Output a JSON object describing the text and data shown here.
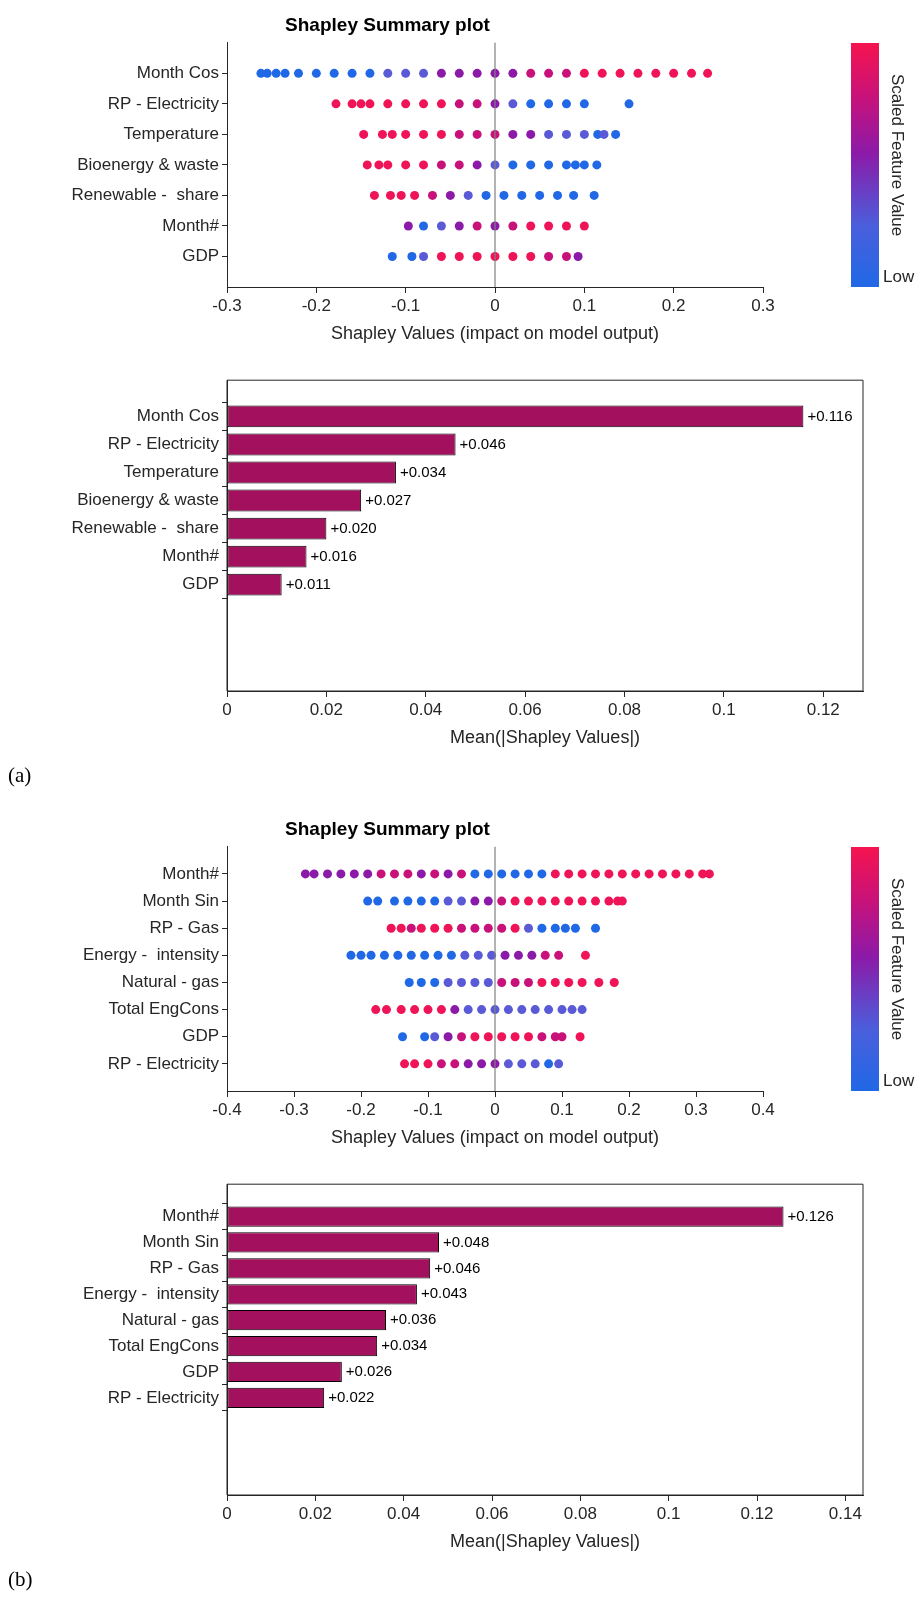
{
  "chart_data": [
    {
      "type": "scatter",
      "title": "Shapley Summary plot",
      "orientation": "horizontal",
      "xlabel": "Shapley Values (impact on model output)",
      "xlim": [
        -0.3,
        0.3
      ],
      "xticks": [
        -0.3,
        -0.2,
        -0.1,
        0,
        0.1,
        0.2,
        0.3
      ],
      "grid": false,
      "legend": false,
      "clabel": "Scaled Feature Value",
      "annotations": [
        "Low"
      ],
      "ref_lines": [
        {
          "axis": "x",
          "value": 0,
          "color": "#808080"
        }
      ],
      "categories": [
        "Month Cos",
        "RP - Electricity",
        "Temperature",
        "Bioenergy & waste",
        "Renewable -  share",
        "Month#",
        "GDP"
      ],
      "series": [
        {
          "x": [
            "Month Cos",
            "Month Cos",
            "Month Cos",
            "Month Cos",
            "Month Cos",
            "Month Cos",
            "Month Cos",
            "Month Cos",
            "Month Cos",
            "Month Cos",
            "Month Cos",
            "Month Cos",
            "Month Cos",
            "Month Cos",
            "Month Cos",
            "Month Cos",
            "Month Cos",
            "Month Cos",
            "Month Cos",
            "Month Cos",
            "Month Cos",
            "Month Cos",
            "Month Cos",
            "Month Cos",
            "Month Cos",
            "Month Cos",
            "Month Cos",
            "Month Cos"
          ],
          "values": [
            -0.262,
            -0.255,
            -0.245,
            -0.235,
            -0.22,
            -0.2,
            -0.18,
            -0.16,
            -0.14,
            -0.12,
            -0.1,
            -0.08,
            -0.06,
            -0.04,
            -0.02,
            0,
            0.02,
            0.04,
            0.06,
            0.08,
            0.1,
            0.12,
            0.14,
            0.16,
            0.18,
            0.2,
            0.22,
            0.238
          ],
          "colors": [
            "#2068e6",
            "#2068e6",
            "#2068e6",
            "#2068e6",
            "#2068e6",
            "#2068e6",
            "#2068e6",
            "#2068e6",
            "#2068e6",
            "#5a5ad6",
            "#5a5ad6",
            "#5a5ad6",
            "#8c1aa8",
            "#8c1aa8",
            "#8c1aa8",
            "#8c1aa8",
            "#8c1aa8",
            "#c8127a",
            "#c8127a",
            "#c8127a",
            "#ef1458",
            "#ef1458",
            "#ef1458",
            "#ef1458",
            "#ef1458",
            "#ef1458",
            "#ef1458",
            "#ef1458"
          ]
        },
        {
          "x": [
            "RP - Electricity",
            "RP - Electricity",
            "RP - Electricity",
            "RP - Electricity",
            "RP - Electricity",
            "RP - Electricity",
            "RP - Electricity",
            "RP - Electricity",
            "RP - Electricity",
            "RP - Electricity",
            "RP - Electricity",
            "RP - Electricity",
            "RP - Electricity",
            "RP - Electricity",
            "RP - Electricity",
            "RP - Electricity",
            "RP - Electricity"
          ],
          "values": [
            -0.178,
            -0.16,
            -0.15,
            -0.14,
            -0.12,
            -0.1,
            -0.08,
            -0.06,
            -0.04,
            -0.02,
            0,
            0.02,
            0.04,
            0.06,
            0.08,
            0.1,
            0.15
          ],
          "colors": [
            "#ef1458",
            "#ef1458",
            "#ef1458",
            "#ef1458",
            "#ef1458",
            "#ef1458",
            "#ef1458",
            "#ef1458",
            "#c8127a",
            "#c8127a",
            "#8c1aa8",
            "#5a5ad6",
            "#2068e6",
            "#2068e6",
            "#2068e6",
            "#2068e6",
            "#2068e6"
          ]
        },
        {
          "x": [
            "Temperature",
            "Temperature",
            "Temperature",
            "Temperature",
            "Temperature",
            "Temperature",
            "Temperature",
            "Temperature",
            "Temperature",
            "Temperature",
            "Temperature",
            "Temperature",
            "Temperature",
            "Temperature",
            "Temperature",
            "Temperature",
            "Temperature"
          ],
          "values": [
            -0.147,
            -0.126,
            -0.115,
            -0.1,
            -0.08,
            -0.06,
            -0.04,
            -0.02,
            0,
            0.02,
            0.04,
            0.06,
            0.08,
            0.1,
            0.115,
            0.122,
            0.135
          ],
          "colors": [
            "#ef1458",
            "#ef1458",
            "#ef1458",
            "#ef1458",
            "#ef1458",
            "#ef1458",
            "#c8127a",
            "#c8127a",
            "#c8127a",
            "#8c1aa8",
            "#8c1aa8",
            "#5a5ad6",
            "#5a5ad6",
            "#5a5ad6",
            "#2068e6",
            "#5a5ad6",
            "#2068e6"
          ]
        },
        {
          "x": [
            "Bioenergy & waste",
            "Bioenergy & waste",
            "Bioenergy & waste",
            "Bioenergy & waste",
            "Bioenergy & waste",
            "Bioenergy & waste",
            "Bioenergy & waste",
            "Bioenergy & waste",
            "Bioenergy & waste",
            "Bioenergy & waste",
            "Bioenergy & waste",
            "Bioenergy & waste",
            "Bioenergy & waste",
            "Bioenergy & waste",
            "Bioenergy & waste",
            "Bioenergy & waste"
          ],
          "values": [
            -0.143,
            -0.13,
            -0.12,
            -0.1,
            -0.08,
            -0.06,
            -0.04,
            -0.02,
            0,
            0.02,
            0.04,
            0.06,
            0.08,
            0.09,
            0.1,
            0.114
          ],
          "colors": [
            "#ef1458",
            "#ef1458",
            "#ef1458",
            "#ef1458",
            "#ef1458",
            "#c8127a",
            "#c8127a",
            "#8c1aa8",
            "#5a5ad6",
            "#2068e6",
            "#2068e6",
            "#2068e6",
            "#2068e6",
            "#2068e6",
            "#2068e6",
            "#2068e6"
          ]
        },
        {
          "x": [
            "Renewable -  share",
            "Renewable -  share",
            "Renewable -  share",
            "Renewable -  share",
            "Renewable -  share",
            "Renewable -  share",
            "Renewable -  share",
            "Renewable -  share",
            "Renewable -  share",
            "Renewable -  share",
            "Renewable -  share",
            "Renewable -  share",
            "Renewable -  share",
            "Renewable -  share"
          ],
          "values": [
            -0.135,
            -0.117,
            -0.105,
            -0.09,
            -0.07,
            -0.05,
            -0.03,
            -0.01,
            0.01,
            0.03,
            0.05,
            0.07,
            0.088,
            0.111
          ],
          "colors": [
            "#ef1458",
            "#ef1458",
            "#ef1458",
            "#ef1458",
            "#c8127a",
            "#8c1aa8",
            "#5a5ad6",
            "#2068e6",
            "#2068e6",
            "#2068e6",
            "#2068e6",
            "#2068e6",
            "#2068e6",
            "#2068e6"
          ]
        },
        {
          "x": [
            "Month#",
            "Month#",
            "Month#",
            "Month#",
            "Month#",
            "Month#",
            "Month#",
            "Month#",
            "Month#",
            "Month#",
            "Month#"
          ],
          "values": [
            -0.097,
            -0.08,
            -0.06,
            -0.04,
            -0.02,
            0,
            0.02,
            0.04,
            0.06,
            0.08,
            0.1
          ],
          "colors": [
            "#8c1aa8",
            "#2068e6",
            "#5a5ad6",
            "#8c1aa8",
            "#c8127a",
            "#8c1aa8",
            "#c8127a",
            "#ef1458",
            "#ef1458",
            "#ef1458",
            "#ef1458"
          ]
        },
        {
          "x": [
            "GDP",
            "GDP",
            "GDP",
            "GDP",
            "GDP",
            "GDP",
            "GDP",
            "GDP",
            "GDP",
            "GDP",
            "GDP",
            "GDP"
          ],
          "values": [
            -0.115,
            -0.093,
            -0.08,
            -0.06,
            -0.04,
            -0.02,
            0,
            0.02,
            0.04,
            0.06,
            0.08,
            0.093
          ],
          "colors": [
            "#2068e6",
            "#2068e6",
            "#5a5ad6",
            "#ef1458",
            "#ef1458",
            "#ef1458",
            "#ef1458",
            "#ef1458",
            "#ef1458",
            "#c8127a",
            "#c8127a",
            "#8c1aa8"
          ]
        }
      ]
    },
    {
      "type": "bar",
      "orientation": "horizontal",
      "xlabel": "Mean(|Shapley Values|)",
      "categories": [
        "Month Cos",
        "RP - Electricity",
        "Temperature",
        "Bioenergy & waste",
        "Renewable -  share",
        "Month#",
        "GDP"
      ],
      "values": [
        0.116,
        0.046,
        0.034,
        0.027,
        0.02,
        0.016,
        0.011
      ],
      "value_labels": [
        "+0.116",
        "+0.046",
        "+0.034",
        "+0.027",
        "+0.020",
        "+0.016",
        "+0.011"
      ],
      "color": "#a3105e",
      "xlim": [
        0,
        0.128
      ],
      "xticks": [
        0,
        0.02,
        0.04,
        0.06,
        0.08,
        0.1,
        0.12
      ],
      "grid": false,
      "legend": false,
      "annotations": [
        "(a)"
      ]
    },
    {
      "type": "scatter",
      "title": "Shapley Summary plot",
      "orientation": "horizontal",
      "xlabel": "Shapley Values (impact on model output)",
      "xlim": [
        -0.4,
        0.4
      ],
      "xticks": [
        -0.4,
        -0.3,
        -0.2,
        -0.1,
        0,
        0.1,
        0.2,
        0.3,
        0.4
      ],
      "grid": false,
      "legend": false,
      "clabel": "Scaled Feature Value",
      "annotations": [
        "Low"
      ],
      "ref_lines": [
        {
          "axis": "x",
          "value": 0,
          "color": "#808080"
        }
      ],
      "categories": [
        "Month#",
        "Month Sin",
        "RP - Gas",
        "Energy -  intensity",
        "Natural - gas",
        "Total EngCons",
        "GDP",
        "RP - Electricity"
      ],
      "series": [
        {
          "x": [
            "Month#",
            "Month#",
            "Month#",
            "Month#",
            "Month#",
            "Month#",
            "Month#",
            "Month#",
            "Month#",
            "Month#",
            "Month#",
            "Month#",
            "Month#",
            "Month#",
            "Month#",
            "Month#",
            "Month#",
            "Month#",
            "Month#",
            "Month#",
            "Month#",
            "Month#",
            "Month#",
            "Month#",
            "Month#",
            "Month#",
            "Month#",
            "Month#",
            "Month#",
            "Month#",
            "Month#",
            "Month#"
          ],
          "values": [
            -0.283,
            -0.27,
            -0.25,
            -0.23,
            -0.21,
            -0.19,
            -0.17,
            -0.15,
            -0.13,
            -0.11,
            -0.09,
            -0.07,
            -0.05,
            -0.03,
            -0.01,
            0.01,
            0.03,
            0.05,
            0.07,
            0.09,
            0.11,
            0.13,
            0.15,
            0.17,
            0.19,
            0.21,
            0.23,
            0.25,
            0.27,
            0.29,
            0.31,
            0.32
          ],
          "colors": [
            "#8c1aa8",
            "#8c1aa8",
            "#8c1aa8",
            "#8c1aa8",
            "#8c1aa8",
            "#8c1aa8",
            "#c8127a",
            "#c8127a",
            "#c8127a",
            "#8c1aa8",
            "#c8127a",
            "#8c1aa8",
            "#c8127a",
            "#2068e6",
            "#2068e6",
            "#2068e6",
            "#2068e6",
            "#2068e6",
            "#2068e6",
            "#ef1458",
            "#ef1458",
            "#ef1458",
            "#ef1458",
            "#ef1458",
            "#ef1458",
            "#ef1458",
            "#ef1458",
            "#ef1458",
            "#ef1458",
            "#ef1458",
            "#ef1458",
            "#ef1458"
          ]
        },
        {
          "x": [
            "Month Sin",
            "Month Sin",
            "Month Sin",
            "Month Sin",
            "Month Sin",
            "Month Sin",
            "Month Sin",
            "Month Sin",
            "Month Sin",
            "Month Sin",
            "Month Sin",
            "Month Sin",
            "Month Sin",
            "Month Sin",
            "Month Sin",
            "Month Sin",
            "Month Sin",
            "Month Sin",
            "Month Sin",
            "Month Sin",
            "Month Sin"
          ],
          "values": [
            -0.19,
            -0.175,
            -0.15,
            -0.13,
            -0.11,
            -0.09,
            -0.07,
            -0.05,
            -0.03,
            -0.01,
            0.01,
            0.03,
            0.05,
            0.07,
            0.09,
            0.11,
            0.13,
            0.15,
            0.17,
            0.183,
            0.19
          ],
          "colors": [
            "#2068e6",
            "#2068e6",
            "#2068e6",
            "#2068e6",
            "#2068e6",
            "#2068e6",
            "#5a5ad6",
            "#5a5ad6",
            "#8c1aa8",
            "#8c1aa8",
            "#c8127a",
            "#ef1458",
            "#ef1458",
            "#ef1458",
            "#ef1458",
            "#ef1458",
            "#ef1458",
            "#ef1458",
            "#ef1458",
            "#ef1458",
            "#ef1458"
          ]
        },
        {
          "x": [
            "RP - Gas",
            "RP - Gas",
            "RP - Gas",
            "RP - Gas",
            "RP - Gas",
            "RP - Gas",
            "RP - Gas",
            "RP - Gas",
            "RP - Gas",
            "RP - Gas",
            "RP - Gas",
            "RP - Gas",
            "RP - Gas",
            "RP - Gas",
            "RP - Gas",
            "RP - Gas",
            "RP - Gas"
          ],
          "values": [
            -0.155,
            -0.14,
            -0.125,
            -0.11,
            -0.09,
            -0.07,
            -0.05,
            -0.03,
            -0.01,
            0.01,
            0.03,
            0.05,
            0.07,
            0.09,
            0.105,
            0.12,
            0.15
          ],
          "colors": [
            "#ef1458",
            "#ef1458",
            "#c8127a",
            "#ef1458",
            "#ef1458",
            "#ef1458",
            "#c8127a",
            "#c8127a",
            "#c8127a",
            "#c8127a",
            "#ef1458",
            "#5a5ad6",
            "#2068e6",
            "#2068e6",
            "#2068e6",
            "#2068e6",
            "#2068e6"
          ]
        },
        {
          "x": [
            "Energy -  intensity",
            "Energy -  intensity",
            "Energy -  intensity",
            "Energy -  intensity",
            "Energy -  intensity",
            "Energy -  intensity",
            "Energy -  intensity",
            "Energy -  intensity",
            "Energy -  intensity",
            "Energy -  intensity",
            "Energy -  intensity",
            "Energy -  intensity",
            "Energy -  intensity",
            "Energy -  intensity",
            "Energy -  intensity",
            "Energy -  intensity",
            "Energy -  intensity",
            "Energy -  intensity"
          ],
          "values": [
            -0.215,
            -0.2,
            -0.185,
            -0.165,
            -0.145,
            -0.125,
            -0.105,
            -0.085,
            -0.065,
            -0.045,
            -0.025,
            -0.005,
            0.015,
            0.035,
            0.055,
            0.075,
            0.095,
            0.135
          ],
          "colors": [
            "#2068e6",
            "#2068e6",
            "#2068e6",
            "#2068e6",
            "#2068e6",
            "#2068e6",
            "#2068e6",
            "#2068e6",
            "#2068e6",
            "#5a5ad6",
            "#5a5ad6",
            "#5a5ad6",
            "#8c1aa8",
            "#8c1aa8",
            "#8c1aa8",
            "#c8127a",
            "#c8127a",
            "#ef1458"
          ]
        },
        {
          "x": [
            "Natural - gas",
            "Natural - gas",
            "Natural - gas",
            "Natural - gas",
            "Natural - gas",
            "Natural - gas",
            "Natural - gas",
            "Natural - gas",
            "Natural - gas",
            "Natural - gas",
            "Natural - gas",
            "Natural - gas",
            "Natural - gas",
            "Natural - gas",
            "Natural - gas",
            "Natural - gas"
          ],
          "values": [
            -0.128,
            -0.11,
            -0.09,
            -0.07,
            -0.05,
            -0.03,
            -0.01,
            0.01,
            0.03,
            0.05,
            0.07,
            0.09,
            0.11,
            0.13,
            0.155,
            0.178
          ],
          "colors": [
            "#2068e6",
            "#2068e6",
            "#2068e6",
            "#5a5ad6",
            "#5a5ad6",
            "#5a5ad6",
            "#5a5ad6",
            "#c8127a",
            "#c8127a",
            "#c8127a",
            "#ef1458",
            "#ef1458",
            "#ef1458",
            "#ef1458",
            "#ef1458",
            "#ef1458"
          ]
        },
        {
          "x": [
            "Total EngCons",
            "Total EngCons",
            "Total EngCons",
            "Total EngCons",
            "Total EngCons",
            "Total EngCons",
            "Total EngCons",
            "Total EngCons",
            "Total EngCons",
            "Total EngCons",
            "Total EngCons",
            "Total EngCons",
            "Total EngCons",
            "Total EngCons",
            "Total EngCons",
            "Total EngCons",
            "Total EngCons"
          ],
          "values": [
            -0.178,
            -0.162,
            -0.14,
            -0.12,
            -0.1,
            -0.08,
            -0.06,
            -0.04,
            -0.02,
            0,
            0.02,
            0.04,
            0.06,
            0.08,
            0.1,
            0.115,
            0.13
          ],
          "colors": [
            "#ef1458",
            "#ef1458",
            "#ef1458",
            "#ef1458",
            "#ef1458",
            "#ef1458",
            "#8c1aa8",
            "#5a5ad6",
            "#5a5ad6",
            "#5a5ad6",
            "#5a5ad6",
            "#5a5ad6",
            "#5a5ad6",
            "#5a5ad6",
            "#5a5ad6",
            "#5a5ad6",
            "#5a5ad6"
          ]
        },
        {
          "x": [
            "GDP",
            "GDP",
            "GDP",
            "GDP",
            "GDP",
            "GDP",
            "GDP",
            "GDP",
            "GDP",
            "GDP",
            "GDP",
            "GDP",
            "GDP",
            "GDP"
          ],
          "values": [
            -0.138,
            -0.105,
            -0.09,
            -0.07,
            -0.05,
            -0.03,
            -0.01,
            0.01,
            0.03,
            0.05,
            0.07,
            0.09,
            0.1,
            0.127
          ],
          "colors": [
            "#2068e6",
            "#2068e6",
            "#5a5ad6",
            "#8c1aa8",
            "#c8127a",
            "#ef1458",
            "#ef1458",
            "#ef1458",
            "#ef1458",
            "#ef1458",
            "#c8127a",
            "#c8127a",
            "#c8127a",
            "#ef1458"
          ]
        },
        {
          "x": [
            "RP - Electricity",
            "RP - Electricity",
            "RP - Electricity",
            "RP - Electricity",
            "RP - Electricity",
            "RP - Electricity",
            "RP - Electricity",
            "RP - Electricity",
            "RP - Electricity",
            "RP - Electricity",
            "RP - Electricity",
            "RP - Electricity",
            "RP - Electricity"
          ],
          "values": [
            -0.135,
            -0.12,
            -0.1,
            -0.08,
            -0.06,
            -0.04,
            -0.02,
            0,
            0.02,
            0.04,
            0.06,
            0.08,
            0.095
          ],
          "colors": [
            "#ef1458",
            "#ef1458",
            "#ef1458",
            "#c8127a",
            "#c8127a",
            "#8c1aa8",
            "#8c1aa8",
            "#8c1aa8",
            "#5a5ad6",
            "#5a5ad6",
            "#5a5ad6",
            "#2068e6",
            "#5a5ad6"
          ]
        }
      ]
    },
    {
      "type": "bar",
      "orientation": "horizontal",
      "xlabel": "Mean(|Shapley Values|)",
      "categories": [
        "Month#",
        "Month Sin",
        "RP - Gas",
        "Energy -  intensity",
        "Natural - gas",
        "Total EngCons",
        "GDP",
        "RP - Electricity"
      ],
      "values": [
        0.126,
        0.048,
        0.046,
        0.043,
        0.036,
        0.034,
        0.026,
        0.022
      ],
      "value_labels": [
        "+0.126",
        "+0.048",
        "+0.046",
        "+0.043",
        "+0.036",
        "+0.034",
        "+0.026",
        "+0.022"
      ],
      "color": "#a3105e",
      "xlim": [
        0,
        0.144
      ],
      "xticks": [
        0,
        0.02,
        0.04,
        0.06,
        0.08,
        0.1,
        0.12,
        0.14
      ],
      "grid": false,
      "legend": false,
      "annotations": [
        "(b)"
      ]
    }
  ]
}
